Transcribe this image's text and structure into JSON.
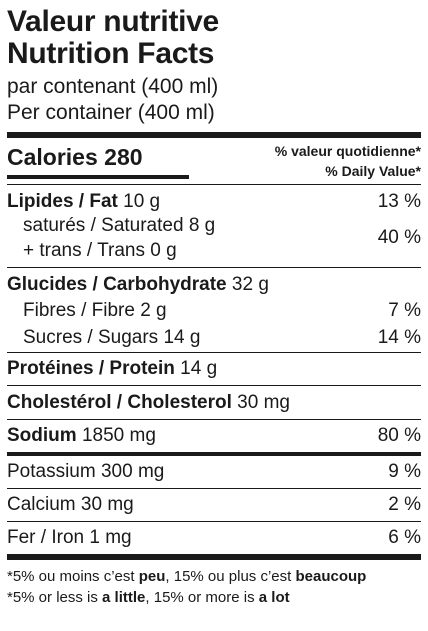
{
  "header": {
    "title_fr": "Valeur nutritive",
    "title_en": "Nutrition Facts",
    "serving_fr": "par contenant (400 ml)",
    "serving_en": "Per container (400 ml)"
  },
  "calories": {
    "label": "Calories",
    "value": "280",
    "dv_header_fr": "% valeur quotidienne*",
    "dv_header_en": "% Daily Value*"
  },
  "fat": {
    "label": "Lipides / Fat",
    "amount": "10 g",
    "dv": "13 %"
  },
  "saturated": {
    "label": "saturés / Saturated",
    "amount": "8 g",
    "dv": "40 %"
  },
  "trans": {
    "label": "+ trans / Trans",
    "amount": "0 g"
  },
  "carbohydrate": {
    "label": "Glucides / Carbohydrate",
    "amount": "32 g"
  },
  "fibre": {
    "label": "Fibres / Fibre",
    "amount": "2 g",
    "dv": "7 %"
  },
  "sugars": {
    "label": "Sucres / Sugars",
    "amount": "14 g",
    "dv": "14 %"
  },
  "protein": {
    "label": "Protéines / Protein",
    "amount": "14 g"
  },
  "cholesterol": {
    "label": "Cholestérol / Cholesterol",
    "amount": "30 mg"
  },
  "sodium": {
    "label": "Sodium",
    "amount": "1850 mg",
    "dv": "80 %"
  },
  "potassium": {
    "label": "Potassium",
    "amount": "300 mg",
    "dv": "9 %"
  },
  "calcium": {
    "label": "Calcium",
    "amount": "30 mg",
    "dv": "2 %"
  },
  "iron": {
    "label": "Fer / Iron",
    "amount": "1 mg",
    "dv": "6 %"
  },
  "footnote": {
    "fr_a": "*5% ou moins c’est ",
    "fr_b": "peu",
    "fr_c": ", 15% ou plus c’est ",
    "fr_d": "beaucoup",
    "en_a": "*5% or less is ",
    "en_b": "a little",
    "en_c": ", 15% or more is ",
    "en_d": "a lot"
  }
}
